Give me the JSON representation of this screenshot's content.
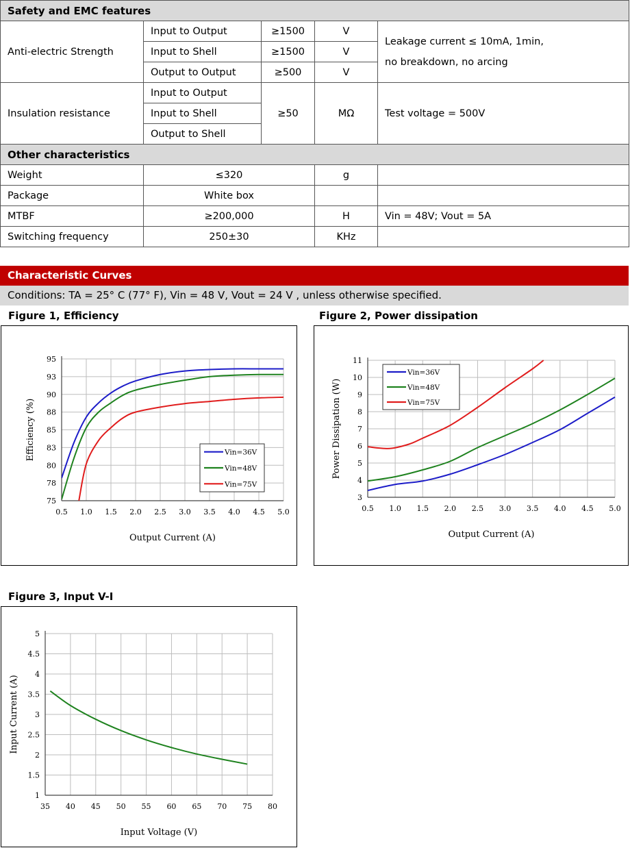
{
  "safety": {
    "title": "Safety and EMC features",
    "anti_electric": {
      "label": "Anti-electric Strength",
      "rows": [
        {
          "item": "Input to Output",
          "value": "≥1500",
          "unit": "V"
        },
        {
          "item": "Input to Shell",
          "value": "≥1500",
          "unit": "V"
        },
        {
          "item": "Output to Output",
          "value": "≥500",
          "unit": "V"
        }
      ],
      "note_line1": "Leakage current ≤ 10mA, 1min,",
      "note_line2": "no breakdown, no arcing"
    },
    "insulation": {
      "label": "Insulation resistance",
      "rows": [
        "Input to Output",
        "Input to Shell",
        "Output to Shell"
      ],
      "value": "≥50",
      "unit": "MΩ",
      "note": "Test voltage = 500V"
    }
  },
  "other": {
    "title": "Other characteristics",
    "rows": [
      {
        "label": "Weight",
        "value": "≤320",
        "unit": "g",
        "note": ""
      },
      {
        "label": "Package",
        "value": "White box",
        "unit": "",
        "note": ""
      },
      {
        "label": "MTBF",
        "value": "≥200,000",
        "unit": "H",
        "note": "Vin = 48V; Vout = 5A"
      },
      {
        "label": "Switching frequency",
        "value": "250±30",
        "unit": "KHz",
        "note": ""
      }
    ]
  },
  "curves": {
    "title": "Characteristic Curves",
    "conditions": "Conditions: TA = 25° C (77° F), Vin = 48 V, Vout = 24 V , unless otherwise specified."
  },
  "figures": {
    "fig1_title": "Figure 1, Efficiency",
    "fig2_title": "Figure 2, Power dissipation",
    "fig3_title": "Figure 3, Input V-I"
  },
  "colors": {
    "blue": "#1c1cc8",
    "green": "#1e821e",
    "red": "#e01c1c",
    "header_red": "#c00000",
    "header_grey": "#d9d9d9"
  },
  "chart_data": [
    {
      "type": "line",
      "xlabel": "Output Current (A)",
      "ylabel": "Efficiency (%)",
      "xlim": [
        0.5,
        5.0
      ],
      "ylim": [
        75,
        95
      ],
      "xticks": [
        "0.5",
        "1.0",
        "1.5",
        "2.0",
        "2.5",
        "3.0",
        "3.5",
        "4.0",
        "4.5",
        "5.0"
      ],
      "yticks": [
        "75",
        "78",
        "80",
        "83",
        "85",
        "88",
        "90",
        "93",
        "95"
      ],
      "legend": "right-middle",
      "grid": true,
      "series": [
        {
          "name": "Vin=36V",
          "color": "#1c1cc8",
          "x": [
            0.5,
            0.75,
            1.0,
            1.25,
            1.5,
            1.75,
            2.0,
            2.5,
            3.0,
            3.5,
            4.0,
            4.5,
            5.0
          ],
          "y": [
            78.2,
            83.2,
            86.8,
            88.8,
            90.2,
            91.2,
            91.9,
            92.8,
            93.3,
            93.5,
            93.6,
            93.6,
            93.6
          ]
        },
        {
          "name": "Vin=48V",
          "color": "#1e821e",
          "x": [
            0.5,
            0.75,
            1.0,
            1.25,
            1.5,
            1.75,
            2.0,
            2.5,
            3.0,
            3.5,
            4.0,
            4.5,
            5.0
          ],
          "y": [
            75.2,
            81.0,
            85.3,
            87.5,
            88.8,
            89.9,
            90.6,
            91.4,
            92.0,
            92.5,
            92.7,
            92.8,
            92.8
          ]
        },
        {
          "name": "Vin=75V",
          "color": "#e01c1c",
          "x": [
            0.85,
            1.0,
            1.25,
            1.5,
            1.75,
            2.0,
            2.5,
            3.0,
            3.5,
            4.0,
            4.5,
            5.0
          ],
          "y": [
            75.0,
            80.2,
            83.5,
            85.3,
            86.7,
            87.5,
            88.2,
            88.7,
            89.0,
            89.3,
            89.5,
            89.6
          ]
        }
      ]
    },
    {
      "type": "line",
      "xlabel": "Output Current (A)",
      "ylabel": "Power Dissipation (W)",
      "xlim": [
        0.5,
        5.0
      ],
      "ylim": [
        3,
        11
      ],
      "xticks": [
        "0.5",
        "1.0",
        "1.5",
        "2.0",
        "2.5",
        "3.0",
        "3.5",
        "4.0",
        "4.5",
        "5.0"
      ],
      "yticks": [
        "3",
        "4",
        "5",
        "6",
        "7",
        "8",
        "9",
        "10",
        "11"
      ],
      "legend": "top-left",
      "grid": true,
      "series": [
        {
          "name": "Vin=36V",
          "color": "#1c1cc8",
          "x": [
            0.5,
            1.0,
            1.5,
            2.0,
            2.5,
            3.0,
            3.5,
            4.0,
            4.5,
            5.0
          ],
          "y": [
            3.4,
            3.75,
            3.95,
            4.35,
            4.9,
            5.5,
            6.2,
            6.95,
            7.9,
            8.85
          ]
        },
        {
          "name": "Vin=48V",
          "color": "#1e821e",
          "x": [
            0.5,
            1.0,
            1.5,
            2.0,
            2.5,
            3.0,
            3.5,
            4.0,
            4.5,
            5.0
          ],
          "y": [
            3.95,
            4.2,
            4.6,
            5.1,
            5.9,
            6.6,
            7.3,
            8.1,
            9.0,
            9.95
          ]
        },
        {
          "name": "Vin=75V",
          "color": "#e01c1c",
          "x": [
            0.5,
            0.9,
            1.25,
            1.5,
            2.0,
            2.5,
            3.0,
            3.5,
            3.7
          ],
          "y": [
            5.95,
            5.85,
            6.1,
            6.45,
            7.2,
            8.25,
            9.4,
            10.5,
            11.0
          ]
        }
      ]
    },
    {
      "type": "line",
      "xlabel": "Input Voltage (V)",
      "ylabel": "Input Current (A)",
      "xlim": [
        35,
        80
      ],
      "ylim": [
        1,
        5
      ],
      "xticks": [
        "35",
        "40",
        "45",
        "50",
        "55",
        "60",
        "65",
        "70",
        "75",
        "80"
      ],
      "yticks": [
        "1",
        "1.5",
        "2",
        "2.5",
        "3",
        "3.5",
        "4",
        "4.5",
        "5"
      ],
      "grid": true,
      "series": [
        {
          "color": "#1e821e",
          "x": [
            36,
            40,
            45,
            50,
            55,
            60,
            65,
            70,
            75
          ],
          "y": [
            3.58,
            3.22,
            2.88,
            2.6,
            2.37,
            2.18,
            2.02,
            1.89,
            1.77
          ]
        }
      ]
    }
  ]
}
